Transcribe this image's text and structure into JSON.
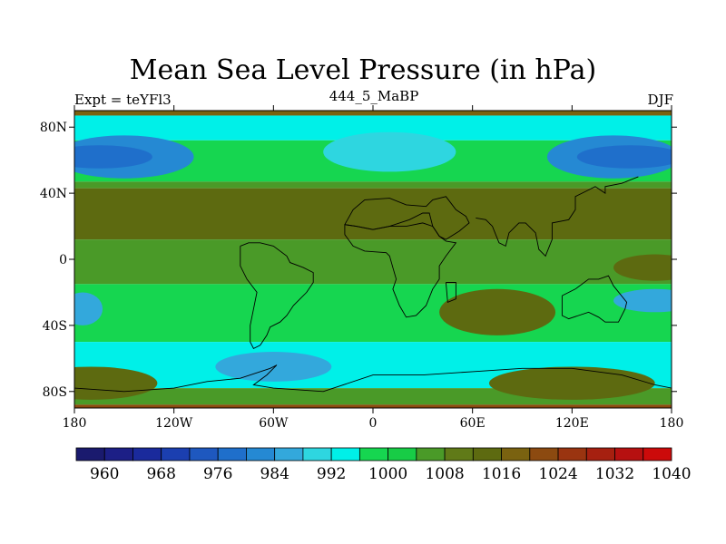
{
  "chart_data": {
    "type": "heatmap",
    "title": "Mean Sea Level Pressure (in hPa)",
    "left_string": "Expt = teYFl3",
    "center_string": "444_5_MaBP",
    "right_string": "DJF",
    "x_range": [
      -180,
      180
    ],
    "y_range": [
      -90,
      90
    ],
    "x_ticks": [
      {
        "value": -180,
        "label": "180"
      },
      {
        "value": -120,
        "label": "120W"
      },
      {
        "value": -60,
        "label": "60W"
      },
      {
        "value": 0,
        "label": "0"
      },
      {
        "value": 60,
        "label": "60E"
      },
      {
        "value": 120,
        "label": "120E"
      },
      {
        "value": 180,
        "label": "180"
      }
    ],
    "y_ticks": [
      {
        "value": 80,
        "label": "80N"
      },
      {
        "value": 40,
        "label": "40N"
      },
      {
        "value": 0,
        "label": "0"
      },
      {
        "value": -40,
        "label": "40S"
      },
      {
        "value": -80,
        "label": "80S"
      }
    ],
    "colorbar": {
      "levels": [
        960,
        964,
        968,
        972,
        976,
        980,
        984,
        988,
        992,
        996,
        1000,
        1004,
        1008,
        1012,
        1016,
        1020,
        1024,
        1028,
        1032,
        1036,
        1040
      ],
      "colors": [
        "#1a1a6e",
        "#1c1f86",
        "#1a2a9c",
        "#1b3fb0",
        "#1e58bf",
        "#1f6fcb",
        "#2589d3",
        "#33a8dc",
        "#2ed6e0",
        "#00f0e8",
        "#16d650",
        "#18cc46",
        "#4a9a28",
        "#607a18",
        "#5d6a10",
        "#7a6210",
        "#8c4a10",
        "#9a3410",
        "#a62010",
        "#b61010",
        "#cc0a0a"
      ],
      "labels": [
        {
          "value": 960,
          "label": "960"
        },
        {
          "value": 968,
          "label": "968"
        },
        {
          "value": 976,
          "label": "976"
        },
        {
          "value": 984,
          "label": "984"
        },
        {
          "value": 992,
          "label": "992"
        },
        {
          "value": 1000,
          "label": "1000"
        },
        {
          "value": 1008,
          "label": "1008"
        },
        {
          "value": 1016,
          "label": "1016"
        },
        {
          "value": 1024,
          "label": "1024"
        },
        {
          "value": 1032,
          "label": "1032"
        },
        {
          "value": 1040,
          "label": "1040"
        }
      ]
    },
    "zonal_bands": [
      {
        "lat_top": 90,
        "lat_bottom": 87,
        "value": 1022
      },
      {
        "lat_top": 87,
        "lat_bottom": 72,
        "value": 997
      },
      {
        "lat_top": 72,
        "lat_bottom": 47,
        "value": 1001
      },
      {
        "lat_top": 47,
        "lat_bottom": 43,
        "value": 1010
      },
      {
        "lat_top": 43,
        "lat_bottom": 12,
        "value": 1018
      },
      {
        "lat_top": 12,
        "lat_bottom": -15,
        "value": 1010
      },
      {
        "lat_top": -15,
        "lat_bottom": -50,
        "value": 1002
      },
      {
        "lat_top": -50,
        "lat_bottom": -78,
        "value": 998
      },
      {
        "lat_top": -78,
        "lat_bottom": -88,
        "value": 1010
      },
      {
        "lat_top": -88,
        "lat_bottom": -90,
        "value": 1024
      }
    ],
    "features": [
      {
        "shape": "ellipse",
        "lon": -150,
        "lat": 62,
        "lon_radius": 42,
        "lat_radius": 13,
        "value": 986
      },
      {
        "shape": "ellipse",
        "lon": 145,
        "lat": 62,
        "lon_radius": 40,
        "lat_radius": 13,
        "value": 986
      },
      {
        "shape": "ellipse",
        "lon": -165,
        "lat": 62,
        "lon_radius": 32,
        "lat_radius": 7,
        "value": 980
      },
      {
        "shape": "ellipse",
        "lon": 155,
        "lat": 62,
        "lon_radius": 32,
        "lat_radius": 7,
        "value": 980
      },
      {
        "shape": "ellipse",
        "lon": 10,
        "lat": 65,
        "lon_radius": 40,
        "lat_radius": 12,
        "value": 993
      },
      {
        "shape": "ellipse",
        "lon": -60,
        "lat": -65,
        "lon_radius": 35,
        "lat_radius": 9,
        "value": 990
      },
      {
        "shape": "ellipse",
        "lon": 170,
        "lat": -25,
        "lon_radius": 25,
        "lat_radius": 7,
        "value": 990
      },
      {
        "shape": "ellipse",
        "lon": -175,
        "lat": -30,
        "lon_radius": 12,
        "lat_radius": 10,
        "value": 990
      },
      {
        "shape": "ellipse",
        "lon": 75,
        "lat": -32,
        "lon_radius": 35,
        "lat_radius": 14,
        "value": 1016
      },
      {
        "shape": "ellipse",
        "lon": 170,
        "lat": -5,
        "lon_radius": 25,
        "lat_radius": 8,
        "value": 1018
      },
      {
        "shape": "ellipse",
        "lon": 120,
        "lat": -75,
        "lon_radius": 50,
        "lat_radius": 10,
        "value": 1016
      },
      {
        "shape": "ellipse",
        "lon": -170,
        "lat": -75,
        "lon_radius": 40,
        "lat_radius": 10,
        "value": 1016
      }
    ],
    "coastlines": [
      {
        "name": "south-america",
        "points": [
          [
            -80,
            8
          ],
          [
            -75,
            10
          ],
          [
            -68,
            10
          ],
          [
            -60,
            8
          ],
          [
            -52,
            2
          ],
          [
            -50,
            -2
          ],
          [
            -42,
            -5
          ],
          [
            -36,
            -8
          ],
          [
            -36,
            -14
          ],
          [
            -40,
            -20
          ],
          [
            -44,
            -24
          ],
          [
            -48,
            -28
          ],
          [
            -52,
            -34
          ],
          [
            -56,
            -38
          ],
          [
            -62,
            -41
          ],
          [
            -64,
            -46
          ],
          [
            -68,
            -52
          ],
          [
            -72,
            -54
          ],
          [
            -74,
            -50
          ],
          [
            -74,
            -40
          ],
          [
            -72,
            -30
          ],
          [
            -70,
            -20
          ],
          [
            -76,
            -12
          ],
          [
            -80,
            -4
          ],
          [
            -80,
            2
          ],
          [
            -80,
            8
          ]
        ]
      },
      {
        "name": "north-africa-mideast",
        "points": [
          [
            -17,
            21
          ],
          [
            -12,
            30
          ],
          [
            -5,
            36
          ],
          [
            10,
            37
          ],
          [
            20,
            33
          ],
          [
            32,
            32
          ],
          [
            36,
            36
          ],
          [
            44,
            38
          ],
          [
            50,
            30
          ],
          [
            56,
            26
          ],
          [
            58,
            22
          ],
          [
            52,
            17
          ],
          [
            44,
            12
          ],
          [
            40,
            14
          ],
          [
            36,
            20
          ],
          [
            34,
            28
          ],
          [
            30,
            28
          ],
          [
            22,
            24
          ],
          [
            10,
            20
          ],
          [
            0,
            18
          ],
          [
            -10,
            20
          ],
          [
            -17,
            21
          ]
        ]
      },
      {
        "name": "africa",
        "points": [
          [
            -17,
            15
          ],
          [
            -12,
            8
          ],
          [
            -5,
            5
          ],
          [
            8,
            4
          ],
          [
            10,
            2
          ],
          [
            12,
            -5
          ],
          [
            14,
            -12
          ],
          [
            12,
            -18
          ],
          [
            16,
            -28
          ],
          [
            20,
            -35
          ],
          [
            26,
            -34
          ],
          [
            32,
            -28
          ],
          [
            36,
            -18
          ],
          [
            40,
            -12
          ],
          [
            40,
            -4
          ],
          [
            44,
            2
          ],
          [
            50,
            10
          ],
          [
            44,
            11
          ],
          [
            40,
            14
          ],
          [
            36,
            20
          ],
          [
            30,
            22
          ],
          [
            20,
            20
          ],
          [
            10,
            20
          ],
          [
            0,
            18
          ],
          [
            -10,
            20
          ],
          [
            -17,
            21
          ],
          [
            -17,
            15
          ]
        ]
      },
      {
        "name": "madagascar",
        "points": [
          [
            44,
            -14
          ],
          [
            50,
            -14
          ],
          [
            50,
            -24
          ],
          [
            45,
            -26
          ],
          [
            44,
            -14
          ]
        ]
      },
      {
        "name": "australia",
        "points": [
          [
            114,
            -22
          ],
          [
            114,
            -34
          ],
          [
            118,
            -36
          ],
          [
            130,
            -32
          ],
          [
            136,
            -35
          ],
          [
            140,
            -38
          ],
          [
            148,
            -38
          ],
          [
            152,
            -30
          ],
          [
            153,
            -26
          ],
          [
            145,
            -16
          ],
          [
            142,
            -10
          ],
          [
            136,
            -12
          ],
          [
            130,
            -12
          ],
          [
            122,
            -18
          ],
          [
            114,
            -22
          ]
        ]
      },
      {
        "name": "south-asia",
        "points": [
          [
            62,
            25
          ],
          [
            68,
            24
          ],
          [
            72,
            20
          ],
          [
            76,
            10
          ],
          [
            80,
            8
          ],
          [
            82,
            16
          ],
          [
            88,
            22
          ],
          [
            92,
            22
          ],
          [
            98,
            16
          ],
          [
            100,
            6
          ],
          [
            104,
            2
          ],
          [
            108,
            12
          ],
          [
            108,
            22
          ],
          [
            118,
            24
          ],
          [
            122,
            30
          ],
          [
            122,
            38
          ],
          [
            126,
            40
          ],
          [
            130,
            42
          ],
          [
            134,
            44
          ],
          [
            140,
            40
          ],
          [
            140,
            44
          ],
          [
            150,
            46
          ],
          [
            160,
            50
          ]
        ]
      },
      {
        "name": "antarctica",
        "points": [
          [
            -180,
            -78
          ],
          [
            -150,
            -80
          ],
          [
            -120,
            -78
          ],
          [
            -100,
            -74
          ],
          [
            -80,
            -72
          ],
          [
            -62,
            -66
          ],
          [
            -58,
            -64
          ],
          [
            -64,
            -70
          ],
          [
            -72,
            -76
          ],
          [
            -60,
            -78
          ],
          [
            -30,
            -80
          ],
          [
            0,
            -70
          ],
          [
            30,
            -70
          ],
          [
            60,
            -68
          ],
          [
            90,
            -66
          ],
          [
            120,
            -66
          ],
          [
            150,
            -70
          ],
          [
            170,
            -76
          ],
          [
            180,
            -78
          ]
        ]
      }
    ]
  }
}
